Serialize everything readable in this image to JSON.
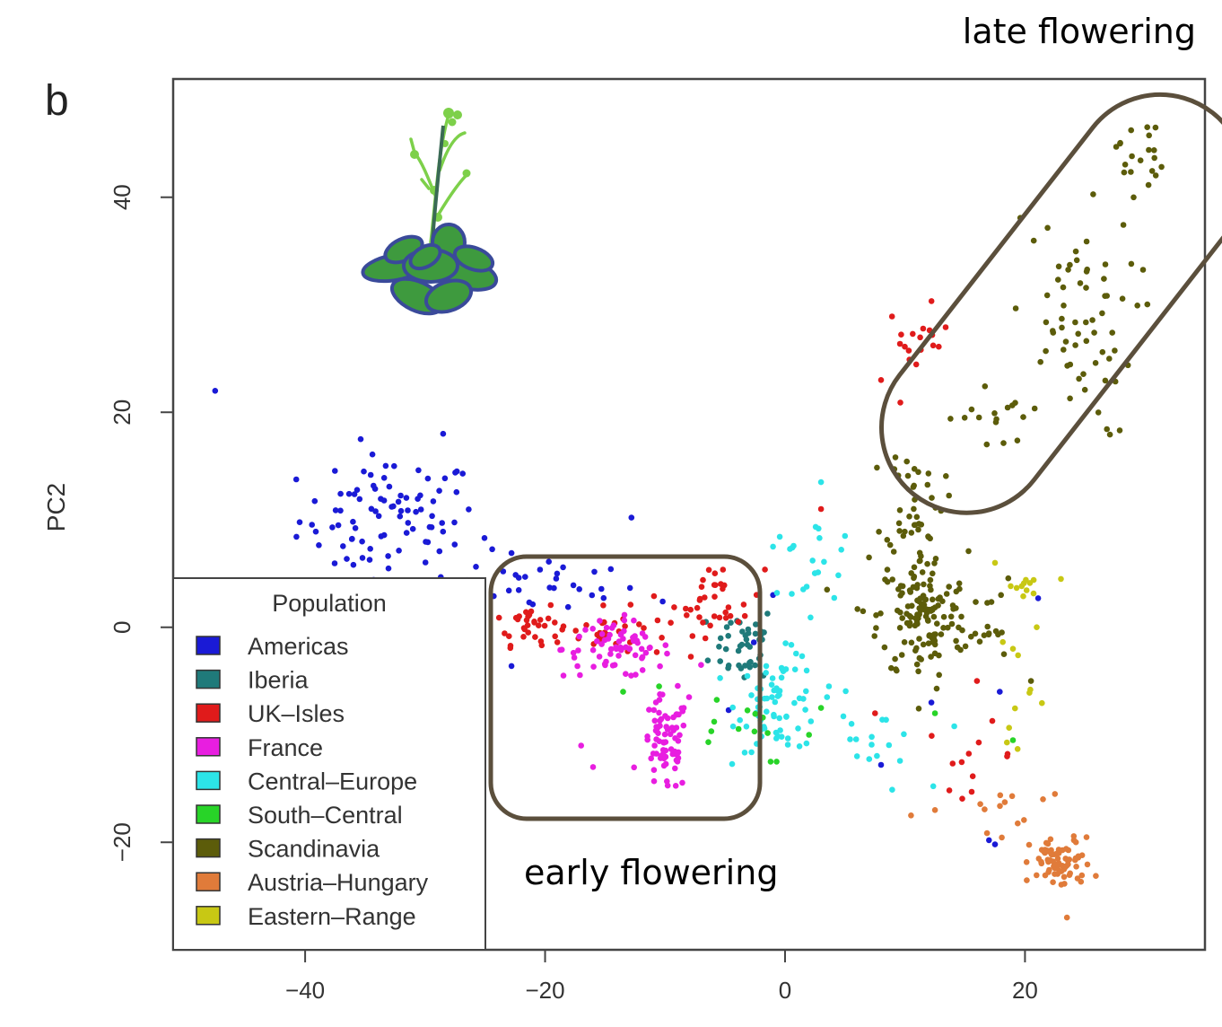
{
  "figure": {
    "panel_letter": "b",
    "annotation_top": "late flowering",
    "annotation_bottom": "early flowering"
  },
  "chart_data": {
    "type": "scatter",
    "xlabel": "",
    "ylabel": "PC2",
    "xlim": [
      -51,
      35
    ],
    "ylim": [
      -30,
      51
    ],
    "x_ticks": [
      -40,
      -20,
      0,
      20
    ],
    "y_ticks": [
      -20,
      0,
      20,
      40
    ],
    "grid": false,
    "legend": {
      "title": "Population",
      "placement": "bottom-left",
      "entries": [
        {
          "label": "Americas",
          "color": "#1a1ad6"
        },
        {
          "label": "Iberia",
          "color": "#1f7a7a"
        },
        {
          "label": "UK–Isles",
          "color": "#e01b1b"
        },
        {
          "label": "France",
          "color": "#e81ee0"
        },
        {
          "label": "Central–Europe",
          "color": "#2ce4e8"
        },
        {
          "label": "South–Central",
          "color": "#28d428"
        },
        {
          "label": "Scandinavia",
          "color": "#5c5c0a"
        },
        {
          "label": "Austria–Hungary",
          "color": "#e07b3a"
        },
        {
          "label": "Eastern–Range",
          "color": "#c8c814"
        }
      ]
    },
    "highlight_regions": [
      {
        "label": "late flowering",
        "shape": "rounded-band",
        "x_range": [
          11,
          34
        ],
        "y_range": [
          13,
          49
        ]
      },
      {
        "label": "early flowering",
        "shape": "rounded-rect",
        "x_range": [
          -24.5,
          -2
        ],
        "y_range": [
          -18,
          7
        ]
      }
    ],
    "series": [
      {
        "name": "Americas",
        "clusters": [
          {
            "x": -33,
            "y": 10,
            "sx": 5,
            "sy": 4,
            "n": 90
          },
          {
            "x": -20,
            "y": 4,
            "sx": 5,
            "sy": 2,
            "n": 30
          }
        ],
        "points": [
          [
            -47.5,
            22
          ],
          [
            -28.5,
            18
          ],
          [
            -12.8,
            10.2
          ],
          [
            -19,
            5
          ],
          [
            -10.2,
            2.4
          ],
          [
            -4.7,
            -7.7
          ],
          [
            -2.6,
            -1.4
          ],
          [
            -1,
            3
          ],
          [
            8,
            -12.8
          ],
          [
            17,
            -19.8
          ],
          [
            17.5,
            -20.2
          ],
          [
            17.9,
            -6
          ],
          [
            21.1,
            2.7
          ],
          [
            12.2,
            -7
          ],
          [
            -22.8,
            -3.6
          ]
        ]
      },
      {
        "name": "Iberia",
        "clusters": [
          {
            "x": -3.5,
            "y": -1.5,
            "sx": 1.8,
            "sy": 2.5,
            "n": 40
          }
        ],
        "points": [
          [
            -5.5,
            -1.8
          ],
          [
            -1.8,
            -4.5
          ]
        ]
      },
      {
        "name": "UK–Isles",
        "clusters": [
          {
            "x": -21.5,
            "y": 0.5,
            "sx": 1.8,
            "sy": 1.4,
            "n": 30
          },
          {
            "x": -15,
            "y": -0.5,
            "sx": 3.5,
            "sy": 1.5,
            "n": 35
          },
          {
            "x": -5.5,
            "y": 2.5,
            "sx": 2.5,
            "sy": 2.2,
            "n": 35
          },
          {
            "x": 11,
            "y": 26.5,
            "sx": 1.8,
            "sy": 2.2,
            "n": 18
          },
          {
            "x": 15.5,
            "y": -12,
            "sx": 2.5,
            "sy": 2,
            "n": 12
          }
        ],
        "points": [
          [
            3,
            11
          ],
          [
            8,
            23
          ],
          [
            7.5,
            -8
          ],
          [
            16,
            -5
          ]
        ]
      },
      {
        "name": "France",
        "clusters": [
          {
            "x": -14,
            "y": -2,
            "sx": 3,
            "sy": 1.8,
            "n": 70
          },
          {
            "x": -10,
            "y": -11,
            "sx": 1.3,
            "sy": 3,
            "n": 75
          }
        ],
        "points": [
          [
            -8,
            -6.5
          ],
          [
            -7,
            -3.5
          ],
          [
            -16,
            -13
          ],
          [
            -17,
            -11
          ]
        ]
      },
      {
        "name": "Central–Europe",
        "clusters": [
          {
            "x": -0.5,
            "y": -7,
            "sx": 2.3,
            "sy": 3,
            "n": 70
          },
          {
            "x": 2,
            "y": 6,
            "sx": 2.5,
            "sy": 2.8,
            "n": 20
          },
          {
            "x": 7,
            "y": -11,
            "sx": 3,
            "sy": 3,
            "n": 18
          }
        ],
        "points": [
          [
            3,
            13.5
          ],
          [
            5,
            8.5
          ],
          [
            -1,
            7.5
          ],
          [
            3.5,
            -6.5
          ],
          [
            6,
            -12
          ]
        ]
      },
      {
        "name": "South–Central",
        "clusters": [
          {
            "x": -4.5,
            "y": -9,
            "sx": 3,
            "sy": 2,
            "n": 10
          }
        ],
        "points": [
          [
            -10.5,
            -5.5
          ],
          [
            -13.5,
            -6
          ],
          [
            -0.7,
            -12.5
          ],
          [
            -1.2,
            -12.5
          ],
          [
            3,
            -7.5
          ],
          [
            2,
            -10
          ],
          [
            12.5,
            -8
          ],
          [
            19,
            -10.5
          ]
        ]
      },
      {
        "name": "Scandinavia",
        "clusters": [
          {
            "x": 11.5,
            "y": 1,
            "sx": 2.5,
            "sy": 4,
            "n": 140
          },
          {
            "x": 10.8,
            "y": 12,
            "sx": 1.6,
            "sy": 3.5,
            "n": 40
          },
          {
            "x": 24,
            "y": 28,
            "sx": 3.5,
            "sy": 7,
            "n": 65
          },
          {
            "x": 17,
            "y": 19.5,
            "sx": 2.2,
            "sy": 2.2,
            "n": 15
          },
          {
            "x": 29.5,
            "y": 44,
            "sx": 1.3,
            "sy": 2.4,
            "n": 20
          },
          {
            "x": 16.5,
            "y": 0,
            "sx": 2,
            "sy": 3,
            "n": 15
          }
        ],
        "points": [
          [
            6.5,
            1.5
          ],
          [
            7,
            6.5
          ],
          [
            3.5,
            3.5
          ],
          [
            20.5,
            -5
          ],
          [
            18,
            3
          ]
        ]
      },
      {
        "name": "Austria–Hungary",
        "clusters": [
          {
            "x": 23,
            "y": -22,
            "sx": 1.7,
            "sy": 1.6,
            "n": 75
          },
          {
            "x": 17.5,
            "y": -17,
            "sx": 1.5,
            "sy": 1.3,
            "n": 10
          }
        ],
        "points": [
          [
            22.5,
            -15.5
          ],
          [
            21.5,
            -16
          ],
          [
            12.5,
            -17
          ],
          [
            10.5,
            -17.5
          ],
          [
            23.5,
            -27
          ]
        ]
      },
      {
        "name": "Eastern–Range",
        "clusters": [
          {
            "x": 20,
            "y": 3.8,
            "sx": 0.9,
            "sy": 0.8,
            "n": 10
          },
          {
            "x": 20,
            "y": -5,
            "sx": 1.3,
            "sy": 4,
            "n": 10
          }
        ],
        "points": [
          [
            17.5,
            6
          ],
          [
            23,
            4.5
          ],
          [
            19,
            -2
          ]
        ]
      }
    ]
  },
  "colors": {
    "frame": "#444444",
    "highlight_outline": "#5b4f3c",
    "plant_leaf": "#3e9a3e",
    "plant_leaf_edge": "#3a4a9a",
    "plant_stem": "#3a6a55",
    "plant_shoot": "#7dd04a"
  },
  "icons": {
    "plant": "arabidopsis-rosette-illustration"
  }
}
